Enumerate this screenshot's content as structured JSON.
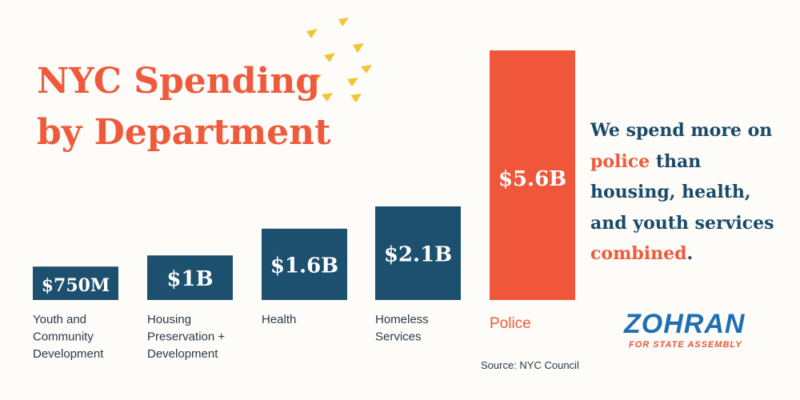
{
  "header": {
    "title_line1": "NYC Spending",
    "title_line2": "by Department"
  },
  "chart_data": {
    "type": "bar",
    "title": "NYC Spending by Department",
    "units": "billions USD",
    "categories": [
      [
        "Youth and",
        "Community",
        "Development"
      ],
      [
        "Housing",
        "Preservation +",
        "Development"
      ],
      [
        "Health"
      ],
      [
        "Homeless",
        "Services"
      ],
      [
        "Police"
      ]
    ],
    "values": [
      0.75,
      1.0,
      1.6,
      2.1,
      5.6
    ],
    "data_labels": [
      "$750M",
      "$1B",
      "$1.6B",
      "$2.1B",
      "$5.6B"
    ],
    "highlight_index": 4,
    "xlabel": "",
    "ylabel": "",
    "grid": false,
    "legend": "none"
  },
  "tagline": {
    "part1": "We spend more on",
    "accent1": "police",
    "part2": "than housing, health, and youth services",
    "accent2": "combined",
    "end": "."
  },
  "source": "Source: NYC Council",
  "brand": {
    "name": "ZOHRAN",
    "subtitle": "FOR STATE ASSEMBLY"
  },
  "colors": {
    "background": "#fdfcf8",
    "bar_default": "#1d4f6e",
    "bar_highlight": "#f0573a",
    "title": "#ef5a3c",
    "tagline_text": "#1a4a6a",
    "accent": "#ef5a3c",
    "label_text": "#2a3a4a",
    "brand_blue": "#1f6fb2",
    "brand_sub": "#e8553a",
    "confetti": "#f2c531"
  }
}
